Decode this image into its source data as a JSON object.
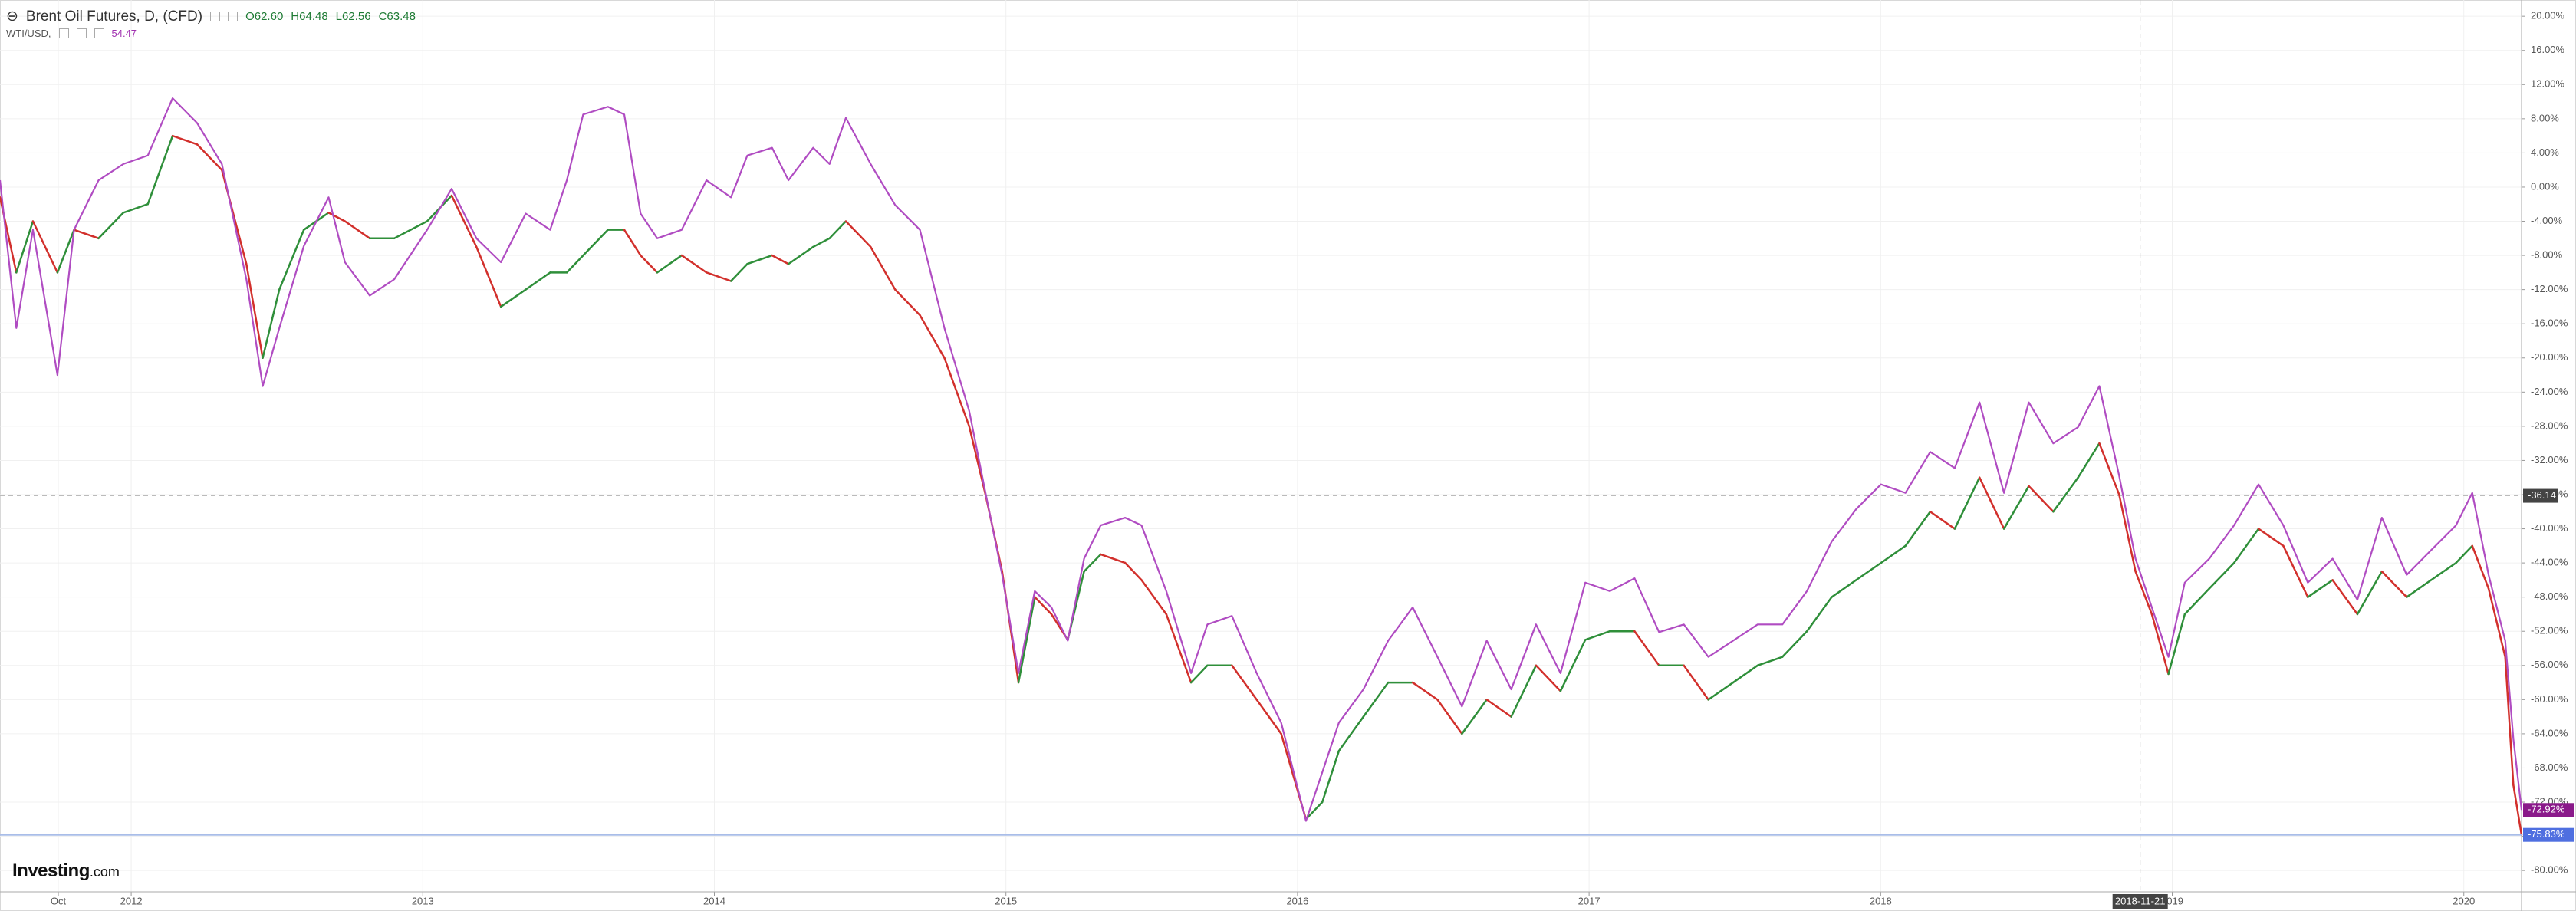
{
  "chart_data": {
    "type": "line",
    "header": {
      "ohlc": [
        "O62.60",
        "H64.48",
        "L62.56",
        "C63.48"
      ]
    },
    "logo": [
      "Investing",
      ".com"
    ],
    "x": [
      2011.55,
      2011.606,
      2011.663,
      2011.747,
      2011.804,
      2011.888,
      2011.973,
      2012.057,
      2012.142,
      2012.226,
      2012.311,
      2012.395,
      2012.451,
      2012.508,
      2012.592,
      2012.677,
      2012.733,
      2012.818,
      2012.902,
      2013.015,
      2013.099,
      2013.184,
      2013.268,
      2013.353,
      2013.437,
      2013.494,
      2013.55,
      2013.635,
      2013.691,
      2013.747,
      2013.804,
      2013.888,
      2013.973,
      2014.057,
      2014.113,
      2014.198,
      2014.254,
      2014.339,
      2014.395,
      2014.451,
      2014.536,
      2014.62,
      2014.705,
      2014.789,
      2014.874,
      2014.93,
      2014.987,
      2015.043,
      2015.099,
      2015.156,
      2015.212,
      2015.268,
      2015.325,
      2015.409,
      2015.465,
      2015.55,
      2015.635,
      2015.691,
      2015.775,
      2015.86,
      2015.944,
      2016.029,
      2016.085,
      2016.142,
      2016.226,
      2016.311,
      2016.395,
      2016.48,
      2016.564,
      2016.649,
      2016.733,
      2016.818,
      2016.902,
      2016.987,
      2017.071,
      2017.156,
      2017.24,
      2017.325,
      2017.409,
      2017.494,
      2017.578,
      2017.663,
      2017.747,
      2017.832,
      2017.916,
      2018.001,
      2018.085,
      2018.17,
      2018.254,
      2018.339,
      2018.423,
      2018.508,
      2018.592,
      2018.677,
      2018.75,
      2018.818,
      2018.874,
      2018.93,
      2018.987,
      2019.043,
      2019.127,
      2019.212,
      2019.296,
      2019.381,
      2019.465,
      2019.55,
      2019.635,
      2019.719,
      2019.804,
      2019.888,
      2019.973,
      2020.029,
      2020.085,
      2020.142,
      2020.17,
      2020.198
    ],
    "series": [
      {
        "name": "Brent Oil Futures, D, (CFD)",
        "colors": {
          "up": "#2f8f3a",
          "down": "#d2302c",
          "last": "#4f6fe0"
        },
        "last_label": "-75.83%",
        "values": [
          -1.2,
          -10,
          -4,
          -10,
          -5,
          -6,
          -3,
          -2,
          6,
          5,
          2,
          -9,
          -20,
          -12,
          -5,
          -3,
          -4,
          -6,
          -6,
          -4,
          -1,
          -7,
          -14,
          -12,
          -10,
          -10,
          -8,
          -5,
          -5,
          -8,
          -10,
          -8,
          -10,
          -11,
          -9,
          -8,
          -9,
          -7,
          -6,
          -4,
          -7,
          -12,
          -15,
          -20,
          -28,
          -36,
          -45,
          -58,
          -48,
          -50,
          -53,
          -45,
          -43,
          -44,
          -46,
          -50,
          -58,
          -56,
          -56,
          -60,
          -64,
          -74,
          -72,
          -66,
          -62,
          -58,
          -58,
          -60,
          -64,
          -60,
          -62,
          -56,
          -59,
          -53,
          -52,
          -52,
          -56,
          -56,
          -60,
          -58,
          -56,
          -55,
          -52,
          -48,
          -46,
          -44,
          -42,
          -38,
          -40,
          -34,
          -40,
          -35,
          -38,
          -34,
          -30,
          -36,
          -45,
          -50,
          -57,
          -50,
          -47,
          -44,
          -40,
          -42,
          -48,
          -46,
          -50,
          -45,
          -48,
          -46,
          -44,
          -42,
          -47,
          -55,
          -70,
          -75.83
        ]
      },
      {
        "name": "WTI/USD,",
        "color": "#b04cc2",
        "last_color": "#8a1a8a",
        "last_price": "54.47",
        "last_label": "-72.92%",
        "values": [
          0.8,
          -16.5,
          -5,
          -22,
          -5,
          0.8,
          2.7,
          3.7,
          10.4,
          7.5,
          2.7,
          -10.8,
          -23.3,
          -16.5,
          -6.9,
          -1.2,
          -8.8,
          -12.7,
          -10.8,
          -5,
          -0.2,
          -6,
          -8.8,
          -3.1,
          -5,
          0.8,
          8.5,
          9.4,
          8.5,
          -3.1,
          -6,
          -5,
          0.8,
          -1.2,
          3.7,
          4.6,
          0.8,
          4.6,
          2.7,
          8.1,
          2.7,
          -2.1,
          -5,
          -16.5,
          -26.2,
          -35.8,
          -45.4,
          -56.9,
          -47.3,
          -49.2,
          -53.1,
          -43.5,
          -39.6,
          -38.7,
          -39.6,
          -47.3,
          -56.9,
          -51.2,
          -50.2,
          -56.9,
          -62.7,
          -74.2,
          -68.5,
          -62.7,
          -58.8,
          -53.1,
          -49.2,
          -55,
          -60.8,
          -53.1,
          -58.8,
          -51.2,
          -56.9,
          -46.3,
          -47.3,
          -45.8,
          -52.1,
          -51.2,
          -55,
          -53.1,
          -51.2,
          -51.2,
          -47.3,
          -41.5,
          -37.7,
          -34.8,
          -35.8,
          -31,
          -32.9,
          -25.2,
          -35.8,
          -25.2,
          -30,
          -28.1,
          -23.3,
          -33.8,
          -43.5,
          -49.2,
          -55,
          -46.3,
          -43.5,
          -39.6,
          -34.8,
          -39.6,
          -46.3,
          -43.5,
          -48.3,
          -38.7,
          -45.4,
          -42.5,
          -39.6,
          -35.8,
          -45.4,
          -53.1,
          -64.6,
          -72.92
        ]
      }
    ],
    "xlim": [
      2011.55,
      2020.198
    ],
    "xticks": [
      {
        "value": 2011.75,
        "label": "Oct"
      },
      2012,
      2013,
      2014,
      2015,
      2016,
      2017,
      2018,
      2019,
      2020
    ],
    "ylim": [
      -82.5,
      21.9
    ],
    "yticks": [
      {
        "value": 20,
        "label": "20.00%"
      },
      {
        "value": 16,
        "label": "16.00%"
      },
      {
        "value": 12,
        "label": "12.00%"
      },
      {
        "value": 8,
        "label": "8.00%"
      },
      {
        "value": 4,
        "label": "4.00%"
      },
      {
        "value": 0,
        "label": "0.00%"
      },
      {
        "value": -4,
        "label": "-4.00%"
      },
      {
        "value": -8,
        "label": "-8.00%"
      },
      {
        "value": -12,
        "label": "-12.00%"
      },
      {
        "value": -16,
        "label": "-16.00%"
      },
      {
        "value": -20,
        "label": "-20.00%"
      },
      {
        "value": -24,
        "label": "-24.00%"
      },
      {
        "value": -28,
        "label": "-28.00%"
      },
      {
        "value": -32,
        "label": "-32.00%"
      },
      {
        "value": -36,
        "label": "-36.00%"
      },
      {
        "value": -40,
        "label": "-40.00%"
      },
      {
        "value": -44,
        "label": "-44.00%"
      },
      {
        "value": -48,
        "label": "-48.00%"
      },
      {
        "value": -52,
        "label": "-52.00%"
      },
      {
        "value": -56,
        "label": "-56.00%"
      },
      {
        "value": -60,
        "label": "-60.00%"
      },
      {
        "value": -64,
        "label": "-64.00%"
      },
      {
        "value": -68,
        "label": "-68.00%"
      },
      {
        "value": -72,
        "label": "-72.00%"
      },
      {
        "value": -76,
        "label": "-76.00%"
      },
      {
        "value": -80,
        "label": "-80.00%"
      }
    ],
    "grid": true,
    "crosshair": {
      "x": {
        "value": 2018.89,
        "label": "2018-11-21"
      },
      "y": -36.14
    }
  }
}
